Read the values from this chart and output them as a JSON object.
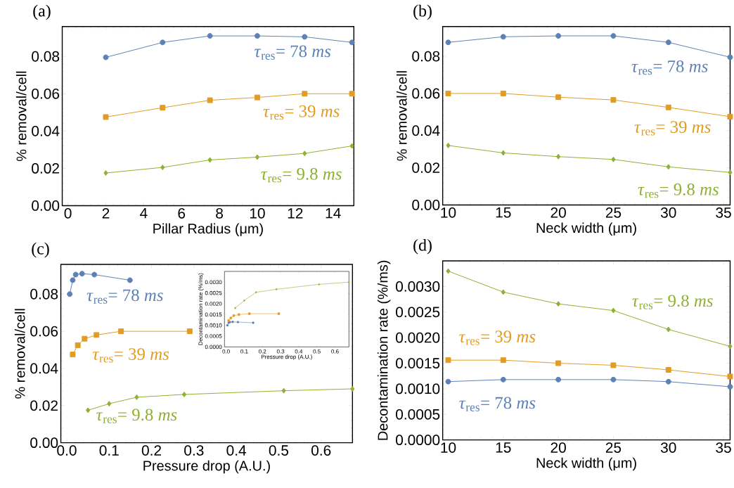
{
  "chart_data": [
    {
      "type": "line",
      "title": "(a)",
      "xlabel": "Pillar Radius (μm)",
      "ylabel": "% removal/cell",
      "x": [
        2,
        5,
        7.5,
        10,
        12.5,
        15
      ],
      "xlim": [
        -0.3,
        15.1
      ],
      "ylim": [
        0,
        0.096
      ],
      "xticks": [
        0,
        2,
        4,
        6,
        8,
        10,
        12,
        14
      ],
      "yticks": [
        {
          "value": 0,
          "label": "0.00"
        },
        {
          "value": 0.02,
          "label": "0.02"
        },
        {
          "value": 0.04,
          "label": "0.04"
        },
        {
          "value": 0.06,
          "label": "0.06"
        },
        {
          "value": 0.08,
          "label": "0.08"
        }
      ],
      "series": [
        {
          "name": "*τ*$_{res}$= 78 *ms*",
          "color": "#5e81b5",
          "marker": "circle",
          "values": [
            0.0795,
            0.0875,
            0.091,
            0.091,
            0.0905,
            0.0875
          ]
        },
        {
          "name": "*τ*$_{res}$= 39 *ms*",
          "color": "#e19c24",
          "marker": "square",
          "values": [
            0.0475,
            0.0525,
            0.0565,
            0.058,
            0.06,
            0.06
          ]
        },
        {
          "name": "*τ*$_{res}$= 9.8 *ms*",
          "color": "#8fb032",
          "marker": "diamond",
          "values": [
            0.0175,
            0.0205,
            0.0245,
            0.026,
            0.028,
            0.032
          ]
        }
      ]
    },
    {
      "type": "line",
      "title": "(b)",
      "xlabel": "Neck width (μm)",
      "ylabel": "% removal/cell",
      "x": [
        10,
        15,
        20,
        25,
        30,
        35.6
      ],
      "xlim": [
        9.5,
        35.6
      ],
      "ylim": [
        0,
        0.096
      ],
      "xticks": [
        10,
        15,
        20,
        25,
        30,
        35
      ],
      "yticks": [
        {
          "value": 0,
          "label": "0.00"
        },
        {
          "value": 0.02,
          "label": "0.02"
        },
        {
          "value": 0.04,
          "label": "0.04"
        },
        {
          "value": 0.06,
          "label": "0.06"
        },
        {
          "value": 0.08,
          "label": "0.08"
        }
      ],
      "series": [
        {
          "name": "*τ*$_{res}$= 78 *ms*",
          "color": "#5e81b5",
          "marker": "circle",
          "values": [
            0.0875,
            0.0905,
            0.091,
            0.091,
            0.0875,
            0.0795
          ]
        },
        {
          "name": "*τ*$_{res}$= 39 *ms*",
          "color": "#e19c24",
          "marker": "square",
          "values": [
            0.06,
            0.06,
            0.058,
            0.0565,
            0.0525,
            0.0475
          ]
        },
        {
          "name": "*τ*$_{res}$= 9.8 *ms*",
          "color": "#8fb032",
          "marker": "diamond",
          "values": [
            0.032,
            0.028,
            0.026,
            0.0245,
            0.0205,
            0.0175
          ]
        }
      ]
    },
    {
      "type": "line",
      "title": "(c)",
      "xlabel": "Pressure drop (A.U.)",
      "ylabel": "% removal/cell",
      "xlim": [
        -0.014,
        0.674
      ],
      "ylim": [
        0,
        0.096
      ],
      "xticks": [
        {
          "value": 0,
          "label": "0.0"
        },
        0.1,
        0.2,
        0.3,
        0.4,
        0.5,
        0.6
      ],
      "yticks": [
        {
          "value": 0,
          "label": "0.00"
        },
        {
          "value": 0.02,
          "label": "0.02"
        },
        {
          "value": 0.04,
          "label": "0.04"
        },
        {
          "value": 0.06,
          "label": "0.06"
        },
        {
          "value": 0.08,
          "label": "0.08"
        }
      ],
      "series": [
        {
          "name": "*τ*$_{res}$= 78 *ms*",
          "color": "#5e81b5",
          "marker": "circle",
          "x": [
            0.007,
            0.014,
            0.021,
            0.036,
            0.065,
            0.149
          ],
          "values": [
            0.08,
            0.0875,
            0.0905,
            0.091,
            0.0905,
            0.0875
          ]
        },
        {
          "name": "*τ*$_{res}$= 39 *ms*",
          "color": "#e19c24",
          "marker": "square",
          "x": [
            0.014,
            0.026,
            0.042,
            0.07,
            0.128,
            0.29
          ],
          "values": [
            0.0475,
            0.0525,
            0.056,
            0.058,
            0.06,
            0.06
          ]
        },
        {
          "name": "*τ*$_{res}$= 9.8 *ms*",
          "color": "#8fb032",
          "marker": "diamond",
          "x": [
            0.05,
            0.1,
            0.165,
            0.277,
            0.512,
            0.674
          ],
          "values": [
            0.0175,
            0.021,
            0.0245,
            0.026,
            0.028,
            0.029
          ]
        }
      ]
    },
    {
      "type": "line",
      "xlabel": "Pressure drop (A.U.)",
      "ylabel": "Decontamination rate (%/ms)",
      "xlim": [
        -0.009,
        0.677
      ],
      "ylim": [
        0,
        0.0035
      ],
      "xticks": [
        {
          "value": 0,
          "label": "0.0"
        },
        0.1,
        0.2,
        0.3,
        0.4,
        0.5,
        0.6
      ],
      "yticks": [
        {
          "value": 0,
          "label": "0.0000"
        },
        {
          "value": 0.0005,
          "label": "0.0005"
        },
        {
          "value": 0.001,
          "label": "0.0010"
        },
        {
          "value": 0.0015,
          "label": "0.0015"
        },
        {
          "value": 0.002,
          "label": "0.0020"
        },
        {
          "value": 0.0025,
          "label": "0.0025"
        },
        {
          "value": 0.003,
          "label": "0.0030"
        }
      ],
      "series": [
        {
          "color": "#5e81b5",
          "marker": "circle",
          "x": [
            0.007,
            0.014,
            0.021,
            0.036,
            0.065,
            0.149
          ],
          "values": [
            0.001,
            0.00112,
            0.00115,
            0.00116,
            0.00115,
            0.00112
          ]
        },
        {
          "color": "#e19c24",
          "marker": "square",
          "x": [
            0.014,
            0.026,
            0.042,
            0.07,
            0.128,
            0.29
          ],
          "values": [
            0.00122,
            0.00134,
            0.00145,
            0.0015,
            0.00154,
            0.00154
          ]
        },
        {
          "color": "#8fb032",
          "marker": "diamond",
          "x": [
            0.05,
            0.1,
            0.165,
            0.277,
            0.512,
            0.677
          ],
          "values": [
            0.0018,
            0.00215,
            0.00253,
            0.00267,
            0.0029,
            0.003
          ]
        }
      ]
    },
    {
      "type": "line",
      "title": "(d)",
      "xlabel": "Neck width (μm)",
      "ylabel": "Decontamination rate (%/ms)",
      "x": [
        10,
        15,
        20,
        25,
        30,
        35.6
      ],
      "xlim": [
        9.5,
        35.6
      ],
      "ylim": [
        0,
        0.0035
      ],
      "xticks": [
        10,
        15,
        20,
        25,
        30,
        35
      ],
      "yticks": [
        {
          "value": 0,
          "label": "0.0000"
        },
        {
          "value": 0.0005,
          "label": "0.0005"
        },
        {
          "value": 0.001,
          "label": "0.0010"
        },
        {
          "value": 0.0015,
          "label": "0.0015"
        },
        {
          "value": 0.002,
          "label": "0.0020"
        },
        {
          "value": 0.0025,
          "label": "0.0025"
        },
        {
          "value": 0.003,
          "label": "0.0030"
        }
      ],
      "series": [
        {
          "name": "*τ*$_{res}$= 78 *ms*",
          "color": "#5e81b5",
          "marker": "circle",
          "values": [
            0.00114,
            0.00118,
            0.00118,
            0.00118,
            0.00114,
            0.00104
          ]
        },
        {
          "name": "*τ*$_{res}$= 39 *ms*",
          "color": "#e19c24",
          "marker": "square",
          "values": [
            0.00156,
            0.00156,
            0.0015,
            0.00146,
            0.00137,
            0.00124
          ]
        },
        {
          "name": "*τ*$_{res}$= 9.8 *ms*",
          "color": "#8fb032",
          "marker": "diamond",
          "values": [
            0.0033,
            0.00289,
            0.00266,
            0.00253,
            0.00216,
            0.00183
          ]
        }
      ]
    }
  ]
}
